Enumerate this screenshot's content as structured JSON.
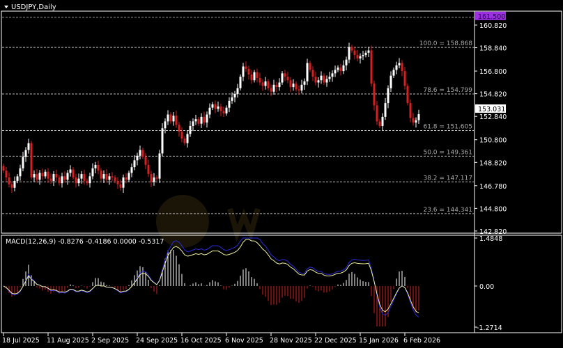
{
  "window": {
    "title": "USDJPY,Daily",
    "menu_icon": "triangle-down-icon"
  },
  "watermark": "WikiFX",
  "colors": {
    "background": "#000000",
    "bull": "#ffffff",
    "bear": "#d42020",
    "grid": "#9a9a9a",
    "macd_line": "#2a2ad8",
    "signal_line": "#f0f0a0",
    "ask_line_label": "#9b30e0"
  },
  "chart_data": [
    {
      "type": "candlestick",
      "title": "USDJPY,Daily",
      "ylim": [
        142.0,
        161.6
      ],
      "y_ticks": [
        "160.820",
        "158.840",
        "156.800",
        "154.820",
        "152.840",
        "150.800",
        "148.820",
        "146.780",
        "144.800",
        "142.820"
      ],
      "x_ticks": [
        "18 Jul 2025",
        "11 Aug 2025",
        "2 Sep 2025",
        "24 Sep 2025",
        "16 Oct 2025",
        "6 Nov 2025",
        "28 Nov 2025",
        "22 Dec 2025",
        "15 Jan 2026",
        "6 Feb 2026"
      ],
      "x_tick_every_bars": 16,
      "first_open": 148.5,
      "closes": [
        148.1,
        147.5,
        146.9,
        146.6,
        147.2,
        147.6,
        148.3,
        149.3,
        149.9,
        150.5,
        147.5,
        147.8,
        147.3,
        147.9,
        147.6,
        148.0,
        147.4,
        147.2,
        147.8,
        147.5,
        147.0,
        147.6,
        147.3,
        147.9,
        148.2,
        147.5,
        147.0,
        147.4,
        147.8,
        147.2,
        147.0,
        147.6,
        148.3,
        148.6,
        148.1,
        147.4,
        147.8,
        147.3,
        147.6,
        147.5,
        147.2,
        146.9,
        146.6,
        147.5,
        147.3,
        147.9,
        148.4,
        149.0,
        149.4,
        149.9,
        149.3,
        148.6,
        147.8,
        147.1,
        147.5,
        147.4,
        149.6,
        151.8,
        152.4,
        153.0,
        152.4,
        152.9,
        152.1,
        151.5,
        150.9,
        150.5,
        151.3,
        152.0,
        152.4,
        152.6,
        152.2,
        152.8,
        152.3,
        153.0,
        153.6,
        153.9,
        153.5,
        153.7,
        153.3,
        153.1,
        153.6,
        154.2,
        154.5,
        154.8,
        155.3,
        156.3,
        157.2,
        157.0,
        156.5,
        156.0,
        156.7,
        156.2,
        155.8,
        155.5,
        155.9,
        155.3,
        155.0,
        155.6,
        155.4,
        155.8,
        156.6,
        156.3,
        156.0,
        155.4,
        155.7,
        155.2,
        155.1,
        155.6,
        155.9,
        157.5,
        156.9,
        156.3,
        155.8,
        156.0,
        156.4,
        155.8,
        156.1,
        156.3,
        156.6,
        156.9,
        157.1,
        156.8,
        157.3,
        157.8,
        158.9,
        158.6,
        158.2,
        157.9,
        158.1,
        158.2,
        158.4,
        158.6,
        155.7,
        153.8,
        152.4,
        152.0,
        152.8,
        154.0,
        155.3,
        156.4,
        156.9,
        157.3,
        157.5,
        156.8,
        155.5,
        154.0,
        152.7,
        152.3,
        152.5,
        153.031
      ],
      "current_price": "153.031",
      "ask_line": {
        "label": "161.500",
        "value": 161.5
      },
      "fibonacci": [
        {
          "label": "100.0 = 158.868",
          "value": 158.868
        },
        {
          "label": "78.6 = 154.799",
          "value": 154.799
        },
        {
          "label": "61.8 = 151.605",
          "value": 151.605
        },
        {
          "label": "50.0 = 149.361",
          "value": 149.361
        },
        {
          "label": "38.2 = 147.117",
          "value": 147.117
        },
        {
          "label": "23.6 = 144.341",
          "value": 144.341
        }
      ],
      "grid": false
    },
    {
      "type": "indicator",
      "title": "MACD(12,26,9) -0.8276 -0.4186 0.0000 -0.5317",
      "params": [
        12,
        26,
        9
      ],
      "values": [
        -0.8276,
        -0.4186,
        0.0,
        -0.5317
      ],
      "ylim": [
        -1.2714,
        1.4848
      ],
      "y_ticks": [
        "1.4848",
        "0.00",
        "-1.2714"
      ]
    }
  ]
}
